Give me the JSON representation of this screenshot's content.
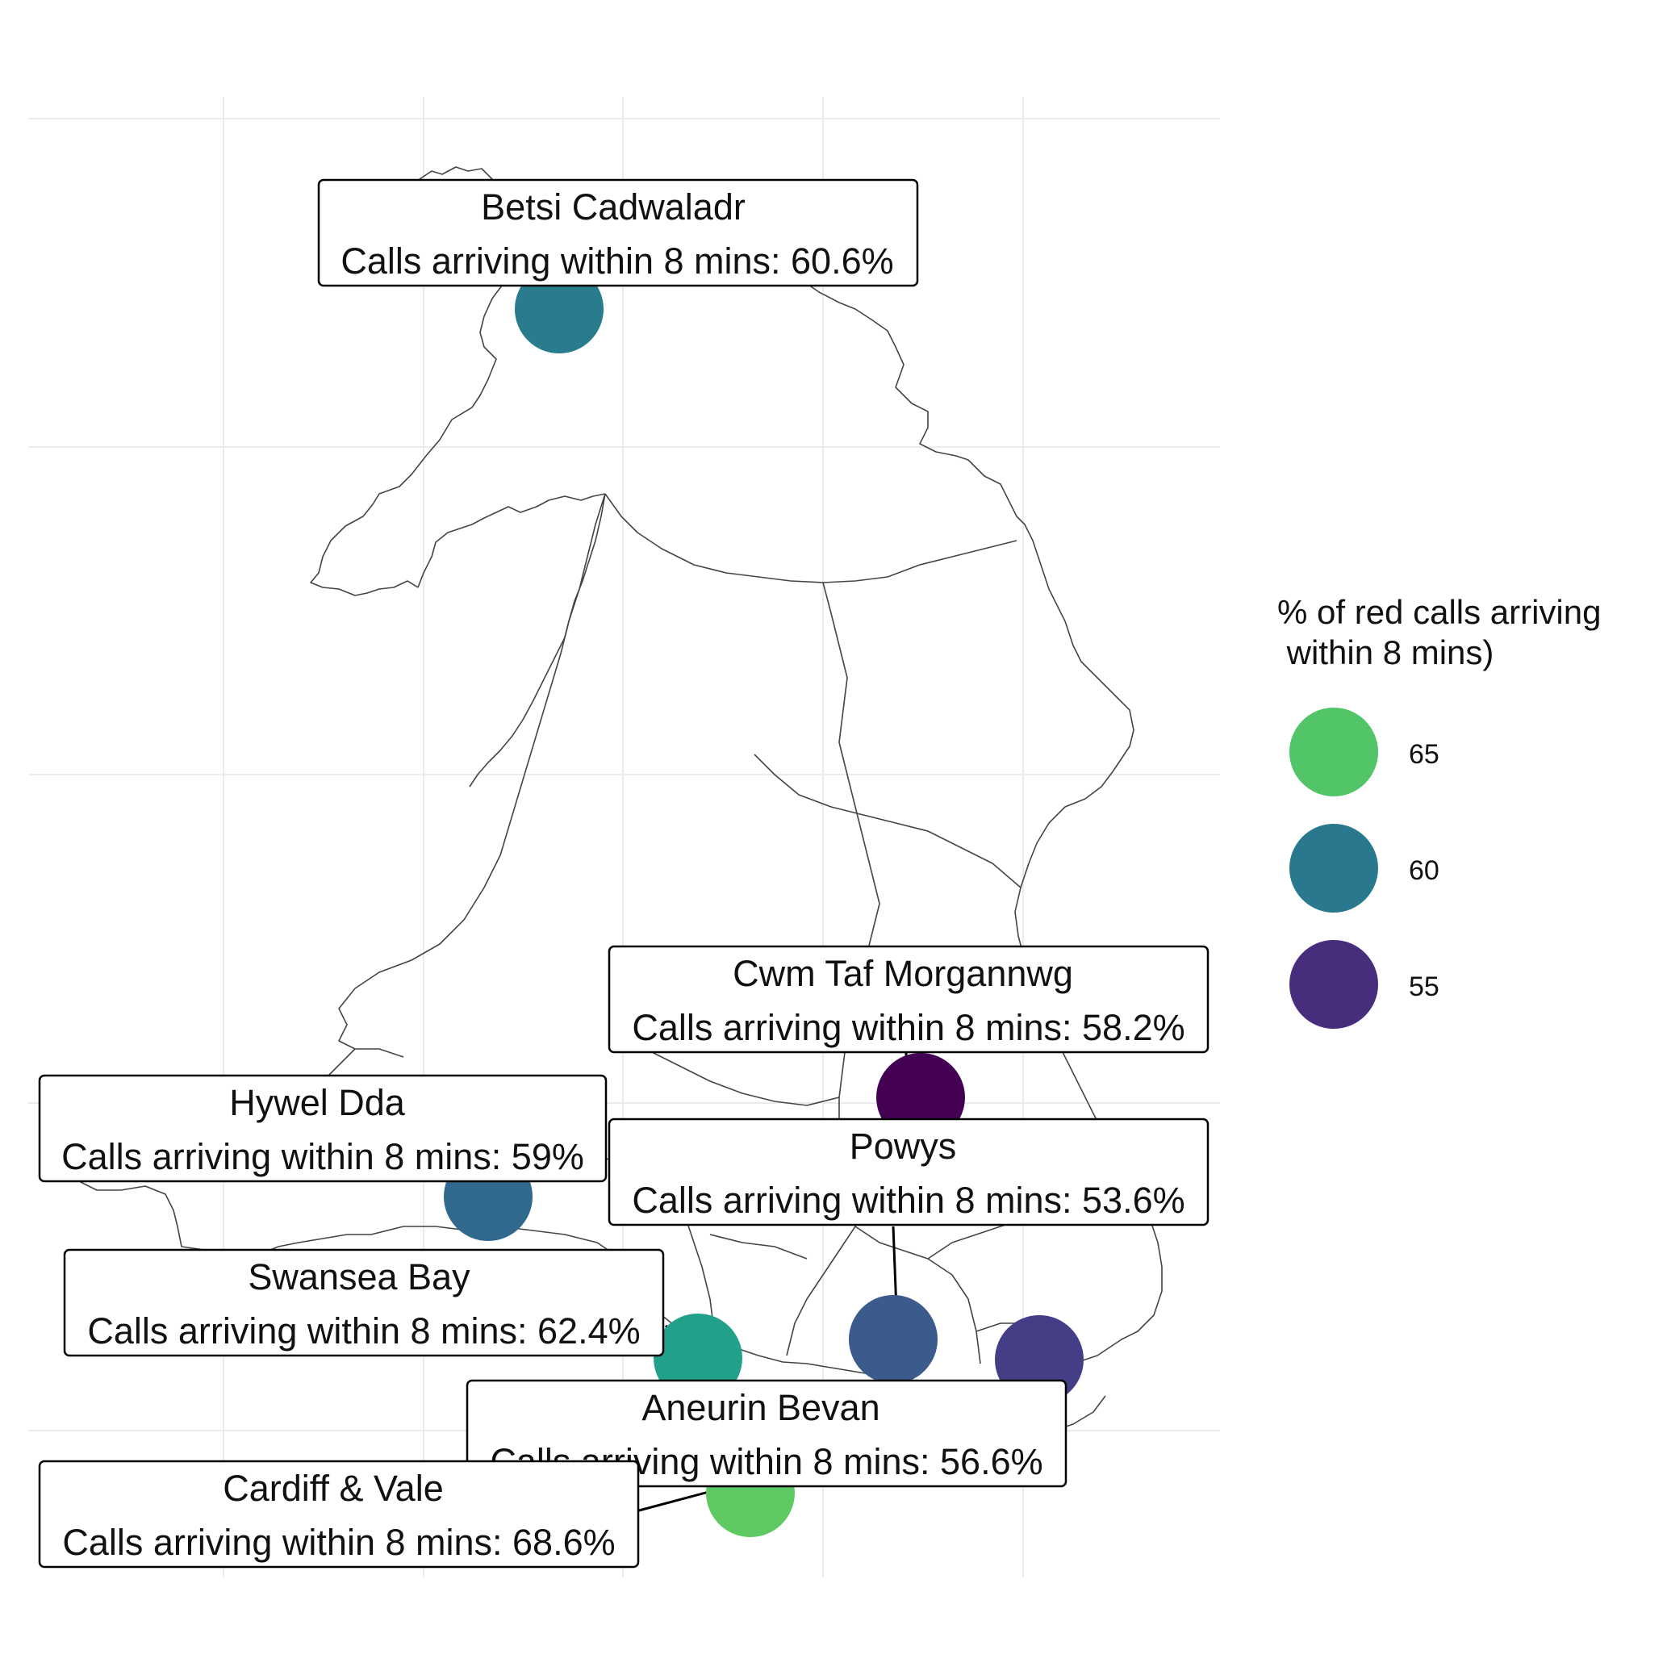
{
  "legend": {
    "title_line1": "% of red calls arriving",
    "title_line2": " within 8 mins)",
    "items": [
      {
        "label": "65",
        "color": "#52c569"
      },
      {
        "label": "60",
        "color": "#2a788e"
      },
      {
        "label": "55",
        "color": "#472d7b"
      }
    ]
  },
  "regions": [
    {
      "id": "betsi",
      "name": "Betsi Cadwaladr",
      "detail": "Calls arriving within 8 mins: 60.6%",
      "value": 60.6,
      "color": "#287c8e"
    },
    {
      "id": "cwmtaf",
      "name": "Cwm Taf Morgannwg",
      "detail": "Calls arriving within 8 mins: 58.2%",
      "value": 58.2,
      "color": "#440154"
    },
    {
      "id": "hyweldda",
      "name": "Hywel Dda",
      "detail": "Calls arriving within 8 mins: 59%",
      "value": 59,
      "color": "#31688e"
    },
    {
      "id": "powys",
      "name": "Powys",
      "detail": "Calls arriving within 8 mins: 53.6%",
      "value": 53.6,
      "color": "#3b5b8c"
    },
    {
      "id": "swansea",
      "name": "Swansea Bay",
      "detail": "Calls arriving within 8 mins: 62.4%",
      "value": 62.4,
      "color": "#21a08a"
    },
    {
      "id": "aneurin",
      "name": "Aneurin Bevan",
      "detail": "Calls arriving within 8 mins: 56.6%",
      "value": 56.6,
      "color": "#433e85"
    },
    {
      "id": "cardiff",
      "name": "Cardiff & Vale",
      "detail": "Calls arriving within 8 mins: 68.6%",
      "value": 68.6,
      "color": "#5ec962"
    }
  ]
}
